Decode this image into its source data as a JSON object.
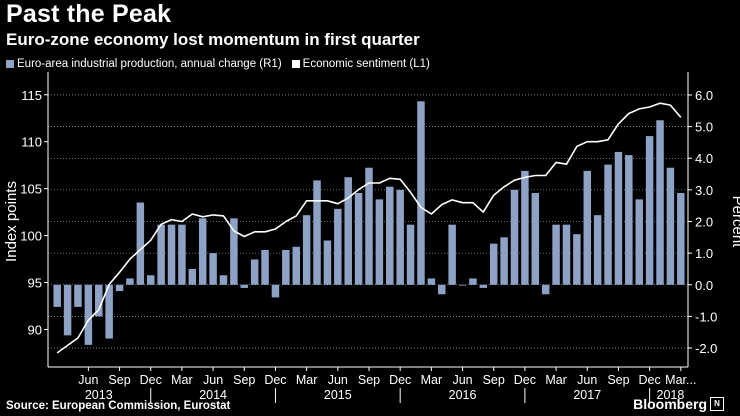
{
  "chart_data": {
    "type": "bar+line",
    "title": "Past the Peak",
    "subtitle": "Euro-zone economy lost momentum in first quarter",
    "legend": [
      {
        "label": "Euro-area industrial production, annual change (R1)",
        "color": "#8ea2c6"
      },
      {
        "label": "Economic sentiment (L1)",
        "color": "#ffffff"
      }
    ],
    "left_axis": {
      "label": "Index points",
      "ticks": [
        "115",
        "110",
        "105",
        "100",
        "95",
        "90"
      ],
      "range": [
        86,
        117
      ]
    },
    "right_axis": {
      "label": "Percent",
      "ticks": [
        "6.0",
        "5.0",
        "4.0",
        "3.0",
        "2.0",
        "1.0",
        "0.0",
        "-1.0",
        "-2.0"
      ],
      "range": [
        -2.6,
        6.6
      ]
    },
    "x_ticks_months": [
      "Jun",
      "Sep",
      "Dec",
      "Mar",
      "Jun",
      "Sep",
      "Dec",
      "Mar",
      "Jun",
      "Sep",
      "Dec",
      "Mar",
      "Jun",
      "Sep",
      "Dec",
      "Mar",
      "Jun",
      "Sep",
      "Dec",
      "Mar..."
    ],
    "x_ticks_years": [
      "2013",
      "2014",
      "2015",
      "2016",
      "2017",
      "2018"
    ],
    "months": [
      "Mar 2013",
      "Apr 2013",
      "May 2013",
      "Jun 2013",
      "Jul 2013",
      "Aug 2013",
      "Sep 2013",
      "Oct 2013",
      "Nov 2013",
      "Dec 2013",
      "Jan 2014",
      "Feb 2014",
      "Mar 2014",
      "Apr 2014",
      "May 2014",
      "Jun 2014",
      "Jul 2014",
      "Aug 2014",
      "Sep 2014",
      "Oct 2014",
      "Nov 2014",
      "Dec 2014",
      "Jan 2015",
      "Feb 2015",
      "Mar 2015",
      "Apr 2015",
      "May 2015",
      "Jun 2015",
      "Jul 2015",
      "Aug 2015",
      "Sep 2015",
      "Oct 2015",
      "Nov 2015",
      "Dec 2015",
      "Jan 2016",
      "Feb 2016",
      "Mar 2016",
      "Apr 2016",
      "May 2016",
      "Jun 2016",
      "Jul 2016",
      "Aug 2016",
      "Sep 2016",
      "Oct 2016",
      "Nov 2016",
      "Dec 2016",
      "Jan 2017",
      "Feb 2017",
      "Mar 2017",
      "Apr 2017",
      "May 2017",
      "Jun 2017",
      "Jul 2017",
      "Aug 2017",
      "Sep 2017",
      "Oct 2017",
      "Nov 2017",
      "Dec 2017",
      "Jan 2018",
      "Feb 2018",
      "Mar 2018"
    ],
    "series": [
      {
        "name": "Euro-area industrial production, annual change (R1)",
        "axis": "right",
        "kind": "bar",
        "values": [
          -0.7,
          -1.6,
          -0.7,
          -1.9,
          -1.0,
          -1.7,
          -0.2,
          0.2,
          2.6,
          0.3,
          1.9,
          1.9,
          1.9,
          0.5,
          2.1,
          1.0,
          0.3,
          2.1,
          -0.1,
          0.8,
          1.1,
          -0.4,
          1.1,
          1.2,
          2.2,
          3.3,
          1.4,
          2.4,
          3.4,
          2.9,
          3.7,
          2.7,
          3.1,
          3.0,
          1.9,
          5.8,
          0.2,
          -0.3,
          1.9,
          0.0,
          0.2,
          -0.1,
          1.3,
          1.5,
          3.0,
          3.6,
          2.9,
          -0.3,
          1.9,
          1.9,
          1.6,
          3.6,
          2.2,
          3.8,
          4.2,
          4.1,
          2.7,
          4.7,
          5.2,
          3.7,
          2.9
        ]
      },
      {
        "name": "Economic sentiment (L1)",
        "axis": "left",
        "kind": "line",
        "values": [
          87.5,
          88.3,
          89.1,
          91.0,
          92.1,
          94.8,
          96.1,
          97.5,
          98.5,
          99.5,
          101.2,
          101.7,
          101.5,
          102.3,
          102.0,
          102.2,
          102.1,
          100.5,
          99.9,
          100.4,
          100.4,
          100.7,
          101.5,
          102.1,
          103.7,
          103.7,
          103.7,
          103.4,
          104.0,
          104.9,
          105.6,
          105.6,
          106.1,
          106.0,
          104.6,
          103.0,
          102.3,
          103.3,
          103.8,
          103.5,
          103.5,
          102.5,
          104.3,
          105.2,
          105.9,
          106.2,
          106.4,
          106.4,
          107.8,
          107.6,
          109.5,
          110.0,
          110.0,
          110.2,
          111.9,
          113.0,
          113.5,
          113.7,
          114.1,
          113.9,
          112.6
        ]
      }
    ],
    "source": "Source: European Commission, Eurostat",
    "brand": "Bloomberg",
    "brand_icon": "N"
  },
  "colors": {
    "bar": "#8ea2c6",
    "line": "#ffffff",
    "grid": "#cccccc",
    "background": "#000000"
  }
}
